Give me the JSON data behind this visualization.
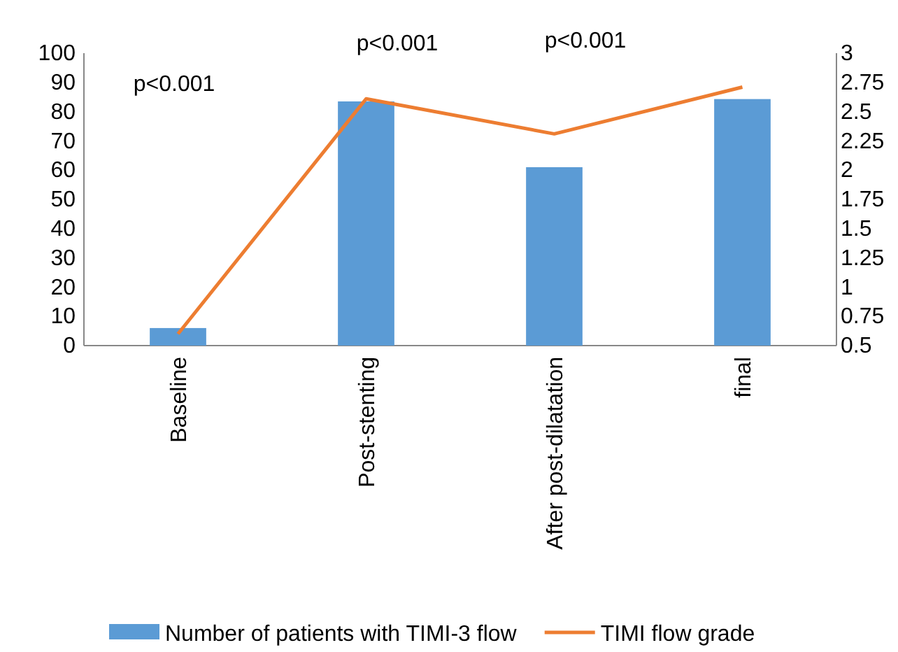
{
  "chart_data": {
    "type": "bar",
    "categories": [
      "Baseline",
      "Post-stenting",
      "After post-dilatation",
      "final"
    ],
    "series": [
      {
        "name": "Number of patients with TIMI-3 flow",
        "color": "#5b9bd5",
        "values": [
          6,
          83.5,
          61,
          84.3
        ]
      },
      {
        "name": "TIMI flow grade",
        "type": "line",
        "axis": "y2",
        "color": "#ed7d31",
        "values": [
          0.6,
          2.61,
          2.31,
          2.71
        ]
      }
    ],
    "ylim": [
      0,
      100
    ],
    "yticks": [
      0,
      10,
      20,
      30,
      40,
      50,
      60,
      70,
      80,
      90,
      100
    ],
    "y2lim": [
      0.5,
      3
    ],
    "y2ticks": [
      0.5,
      0.75,
      1,
      1.25,
      1.5,
      1.75,
      2,
      2.25,
      2.5,
      2.75,
      3
    ],
    "annotations": [
      "p<0.001",
      "p<0.001",
      "p<0.001"
    ],
    "grid": false,
    "legend": "bottom",
    "marker": "none",
    "line_style": "solid"
  }
}
